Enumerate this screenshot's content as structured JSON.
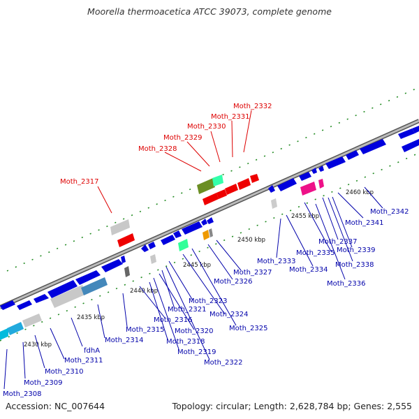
{
  "title": "Moorella thermoacetica ATCC 39073, complete genome",
  "accession": "Accession: NC_007644",
  "topology": "Topology: circular; Length: 2,628,784 bp; Genes: 2,555",
  "colors": {
    "forward": "#0000dd",
    "red_label": "#dd0000",
    "blue_label": "#0000aa",
    "backbone": "#888888",
    "ticks": "#228b22"
  },
  "scale_labels": [
    "2430 kbp",
    "2435 kbp",
    "2440 kbp",
    "2445 kbp",
    "2450 kbp",
    "2455 kbp",
    "2460 kbp"
  ],
  "red_labels": [
    "Moth_2317",
    "Moth_2328",
    "Moth_2329",
    "Moth_2330",
    "Moth_2331",
    "Moth_2332"
  ],
  "blue_labels": [
    "Moth_2308",
    "Moth_2309",
    "Moth_2310",
    "Moth_2311",
    "fdhA",
    "Moth_2314",
    "Moth_2315",
    "Moth_2316",
    "Moth_2318",
    "Moth_2319",
    "Moth_2320",
    "Moth_2321",
    "Moth_2322",
    "Moth_2323",
    "Moth_2324",
    "Moth_2325",
    "Moth_2326",
    "Moth_2327",
    "Moth_2333",
    "Moth_2334",
    "Moth_2335",
    "Moth_2336",
    "Moth_2337",
    "Moth_2338",
    "Moth_2339",
    "Moth_2341",
    "Moth_2342"
  ]
}
